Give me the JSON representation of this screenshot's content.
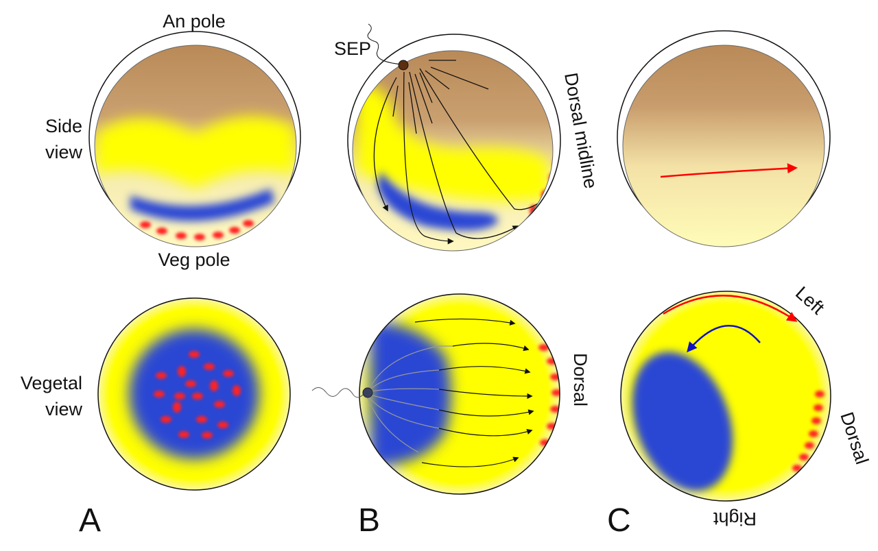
{
  "colors": {
    "animal_cap": "#b98a58",
    "yellow": "#ffff00",
    "blue": "#2b46d4",
    "red": "#ff2020",
    "pale": "#fffbb8",
    "arrow_red": "#ff0000",
    "arrow_blue": "#1010c0"
  },
  "panel_a": {
    "letter": "A",
    "top_label": "An pole",
    "side_label_1": "Side",
    "side_label_2": "view",
    "bottom_label": "Veg pole",
    "vegetal_label_1": "Vegetal",
    "vegetal_label_2": "view"
  },
  "panel_b": {
    "letter": "B",
    "sep_label": "SEP",
    "dorsal_midline_label": "Dorsal midline",
    "dorsal_label": "Dorsal"
  },
  "panel_c": {
    "letter": "C",
    "left_label": "Left",
    "dorsal_label": "Dorsal",
    "right_label": "Right"
  }
}
